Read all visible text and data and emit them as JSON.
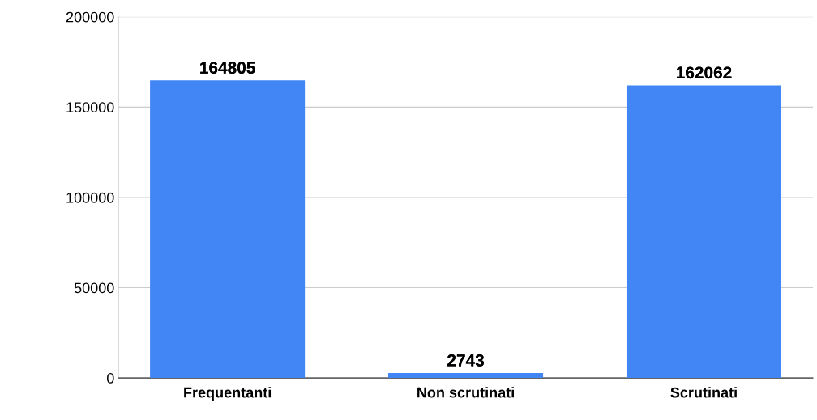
{
  "chart_data": {
    "type": "bar",
    "categories": [
      "Frequentanti",
      "Non scrutinati",
      "Scrutinati"
    ],
    "values": [
      164805,
      2743,
      162062
    ],
    "color": "#4285f4",
    "ylim": [
      0,
      200000
    ],
    "yticks": [
      0,
      50000,
      100000,
      150000,
      200000
    ],
    "grid": "y",
    "data_labels": true
  }
}
